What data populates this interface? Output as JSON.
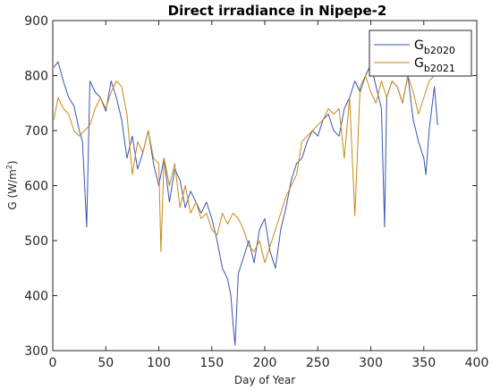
{
  "chart_data": {
    "type": "line",
    "title": "Direct irradiance in Nipepe-2",
    "xlabel": "Day of Year",
    "ylabel": {
      "base": "G (W/m",
      "sup": "2",
      "end": ")"
    },
    "xlim": [
      0,
      400
    ],
    "ylim": [
      300,
      900
    ],
    "xticks": [
      "0",
      "50",
      "100",
      "150",
      "200",
      "250",
      "300",
      "350",
      "400"
    ],
    "yticks": [
      "300",
      "400",
      "500",
      "600",
      "700",
      "800",
      "900"
    ],
    "legend_position": "top-right",
    "grid": false,
    "series": [
      {
        "name": {
          "base": "G",
          "sub": "b2020"
        },
        "color": "#3b55b0",
        "x": [
          1,
          5,
          10,
          15,
          20,
          25,
          28,
          32,
          35,
          40,
          45,
          50,
          55,
          60,
          65,
          70,
          75,
          80,
          85,
          90,
          95,
          100,
          105,
          110,
          115,
          120,
          125,
          130,
          135,
          140,
          145,
          150,
          155,
          160,
          165,
          168,
          170,
          172,
          175,
          180,
          185,
          190,
          195,
          200,
          205,
          210,
          215,
          220,
          225,
          230,
          235,
          240,
          245,
          250,
          255,
          260,
          265,
          270,
          275,
          280,
          285,
          290,
          295,
          300,
          305,
          310,
          313,
          315,
          320,
          325,
          330,
          335,
          340,
          345,
          350,
          352,
          355,
          360,
          363
        ],
        "y": [
          815,
          825,
          790,
          760,
          745,
          700,
          680,
          525,
          790,
          770,
          760,
          735,
          790,
          760,
          720,
          650,
          690,
          630,
          660,
          700,
          640,
          600,
          650,
          570,
          630,
          610,
          560,
          590,
          570,
          550,
          570,
          540,
          500,
          450,
          430,
          400,
          350,
          310,
          440,
          470,
          500,
          460,
          520,
          540,
          480,
          450,
          520,
          560,
          610,
          640,
          650,
          680,
          700,
          690,
          720,
          730,
          700,
          690,
          740,
          760,
          790,
          770,
          800,
          820,
          780,
          740,
          525,
          760,
          790,
          780,
          750,
          800,
          720,
          680,
          650,
          620,
          700,
          780,
          710
        ]
      },
      {
        "name": {
          "base": "G",
          "sub": "b2021"
        },
        "color": "#c98a16",
        "x": [
          1,
          5,
          10,
          15,
          20,
          25,
          30,
          35,
          40,
          45,
          50,
          55,
          60,
          65,
          70,
          75,
          80,
          85,
          90,
          95,
          100,
          102,
          105,
          110,
          115,
          120,
          125,
          130,
          135,
          140,
          145,
          150,
          155,
          160,
          165,
          170,
          175,
          180,
          185,
          190,
          195,
          200,
          205,
          210,
          215,
          220,
          225,
          230,
          235,
          240,
          245,
          250,
          255,
          260,
          265,
          270,
          275,
          280,
          285,
          290,
          295,
          300,
          305,
          310,
          315,
          320,
          325,
          330,
          335,
          340,
          345,
          350,
          355,
          360
        ],
        "y": [
          720,
          760,
          740,
          730,
          700,
          690,
          700,
          710,
          740,
          760,
          740,
          770,
          790,
          780,
          730,
          620,
          680,
          660,
          700,
          650,
          640,
          480,
          650,
          600,
          640,
          560,
          600,
          550,
          570,
          540,
          550,
          520,
          510,
          550,
          530,
          550,
          540,
          520,
          490,
          480,
          500,
          460,
          490,
          520,
          550,
          580,
          600,
          620,
          680,
          690,
          700,
          710,
          720,
          740,
          730,
          740,
          650,
          760,
          545,
          780,
          800,
          770,
          750,
          790,
          760,
          790,
          780,
          750,
          800,
          770,
          730,
          760,
          790,
          800
        ]
      }
    ]
  }
}
